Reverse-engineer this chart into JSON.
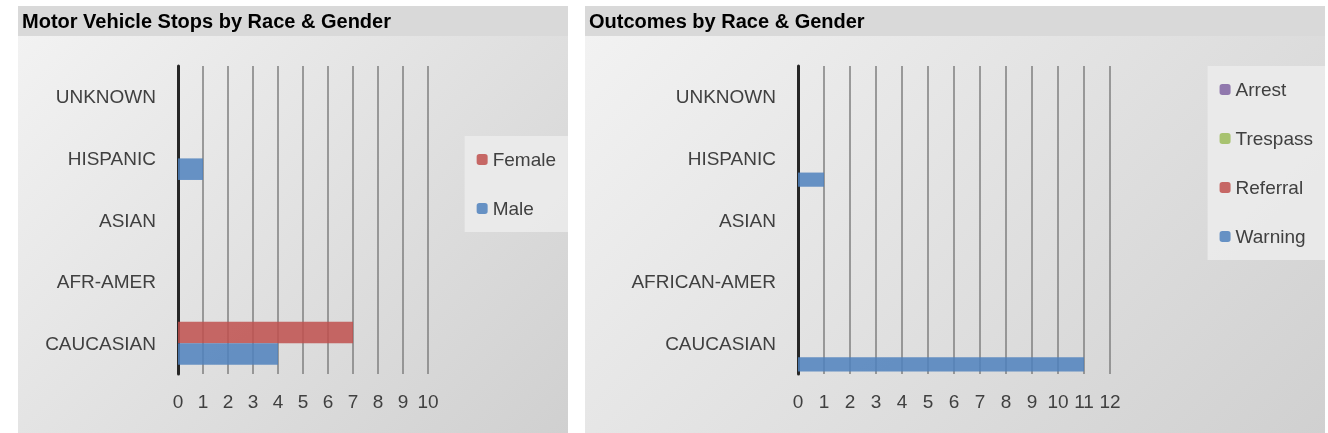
{
  "chart_data": [
    {
      "type": "bar",
      "orientation": "horizontal",
      "title": "Motor Vehicle Stops by Race & Gender",
      "categories": [
        "UNKNOWN",
        "HISPANIC",
        "ASIAN",
        "AFR-AMER",
        "CAUCASIAN"
      ],
      "series": [
        {
          "name": "Female",
          "color": "#c0504d",
          "values": [
            0,
            0,
            0,
            0,
            7
          ]
        },
        {
          "name": "Male",
          "color": "#4f81bd",
          "values": [
            0,
            1,
            0,
            0,
            4
          ]
        }
      ],
      "xlim": [
        0,
        10
      ],
      "xticks": [
        0,
        1,
        2,
        3,
        4,
        5,
        6,
        7,
        8,
        9,
        10
      ],
      "grid": "x",
      "legend": "right"
    },
    {
      "type": "bar",
      "orientation": "horizontal",
      "title": "Outcomes by Race & Gender",
      "categories": [
        "UNKNOWN",
        "HISPANIC",
        "ASIAN",
        "AFRICAN-AMER",
        "CAUCASIAN"
      ],
      "series": [
        {
          "name": "Arrest",
          "color": "#8064a2",
          "values": [
            0,
            0,
            0,
            0,
            0
          ]
        },
        {
          "name": "Trespass",
          "color": "#9bbb59",
          "values": [
            0,
            0,
            0,
            0,
            0
          ]
        },
        {
          "name": "Referral",
          "color": "#c0504d",
          "values": [
            0,
            0,
            0,
            0,
            0
          ]
        },
        {
          "name": "Warning",
          "color": "#4f81bd",
          "values": [
            0,
            1,
            0,
            0,
            11
          ]
        }
      ],
      "xlim": [
        0,
        12
      ],
      "xticks": [
        0,
        1,
        2,
        3,
        4,
        5,
        6,
        7,
        8,
        9,
        10,
        11,
        12
      ],
      "grid": "x",
      "legend": "right"
    }
  ]
}
